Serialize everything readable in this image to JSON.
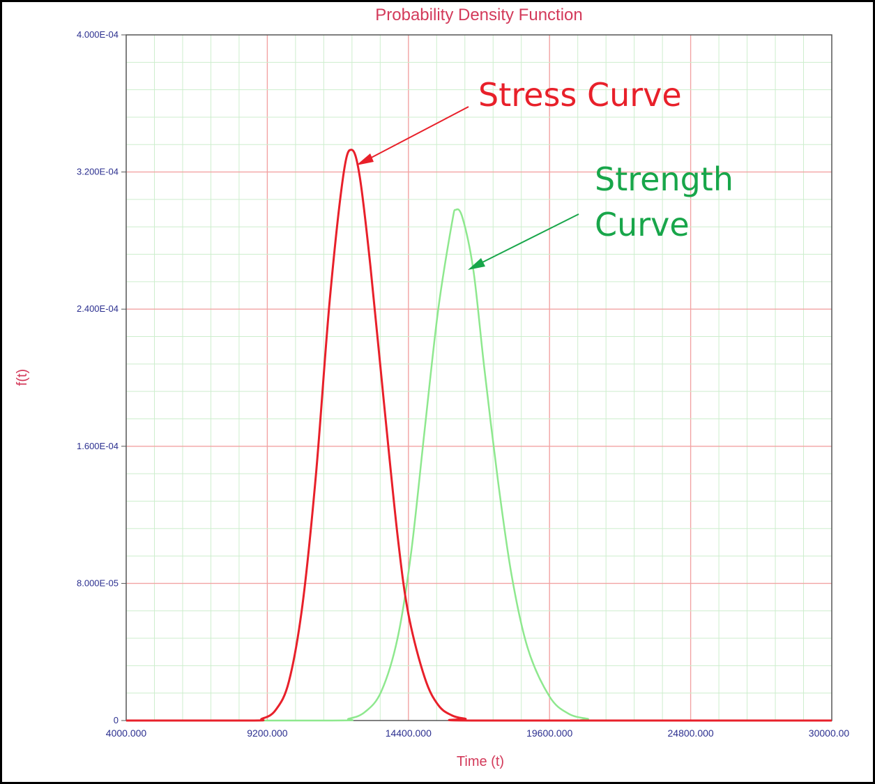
{
  "chart_data": {
    "type": "line",
    "title": "Probability Density Function",
    "xlabel": "Time (t)",
    "ylabel": "f(t)",
    "xlim": [
      4000,
      30000
    ],
    "ylim": [
      0,
      0.0004
    ],
    "x_ticks": [
      "4000.000",
      "9200.000",
      "14400.000",
      "19600.000",
      "24800.000",
      "30000.00"
    ],
    "y_ticks": [
      "0",
      "8.000E-05",
      "1.600E-04",
      "2.400E-04",
      "3.200E-04",
      "4.000E-04"
    ],
    "grid": true,
    "series": [
      {
        "name": "Stress Curve",
        "color": "#e8202a",
        "points": [
          [
            4000,
            0
          ],
          [
            8600,
            0
          ],
          [
            9000,
            1e-06
          ],
          [
            9500,
            6e-06
          ],
          [
            10000,
            2.3e-05
          ],
          [
            10500,
            6.8e-05
          ],
          [
            11000,
            0.000145
          ],
          [
            11500,
            0.000245
          ],
          [
            12000,
            0.000318
          ],
          [
            12300,
            0.000333
          ],
          [
            12600,
            0.000318
          ],
          [
            13000,
            0.000265
          ],
          [
            13500,
            0.000185
          ],
          [
            14000,
            0.000108
          ],
          [
            14400,
            6.2e-05
          ],
          [
            15000,
            2.5e-05
          ],
          [
            15500,
            9e-06
          ],
          [
            16000,
            3e-06
          ],
          [
            16500,
            1e-06
          ],
          [
            17000,
            0
          ],
          [
            30000,
            0
          ]
        ]
      },
      {
        "name": "Strength Curve",
        "color": "#8ee88e",
        "points": [
          [
            4000,
            0
          ],
          [
            11600,
            0
          ],
          [
            12200,
            1e-06
          ],
          [
            12800,
            5e-06
          ],
          [
            13400,
            1.7e-05
          ],
          [
            14000,
            4.8e-05
          ],
          [
            14500,
            9.8e-05
          ],
          [
            15000,
            0.00017
          ],
          [
            15500,
            0.00024
          ],
          [
            16000,
            0.00029
          ],
          [
            16150,
            0.000298
          ],
          [
            16400,
            0.000293
          ],
          [
            16800,
            0.000262
          ],
          [
            17200,
            0.000205
          ],
          [
            17700,
            0.00014
          ],
          [
            18200,
            8.5e-05
          ],
          [
            18800,
            4.2e-05
          ],
          [
            19600,
            1.4e-05
          ],
          [
            20300,
            4e-06
          ],
          [
            21000,
            1e-06
          ],
          [
            21500,
            0
          ],
          [
            30000,
            0
          ]
        ]
      }
    ],
    "annotations": [
      {
        "text": "Stress Curve",
        "color": "#e8202a"
      },
      {
        "text": "Strength",
        "color": "#18a64a"
      },
      {
        "text": "Curve",
        "color": "#18a64a"
      }
    ]
  }
}
